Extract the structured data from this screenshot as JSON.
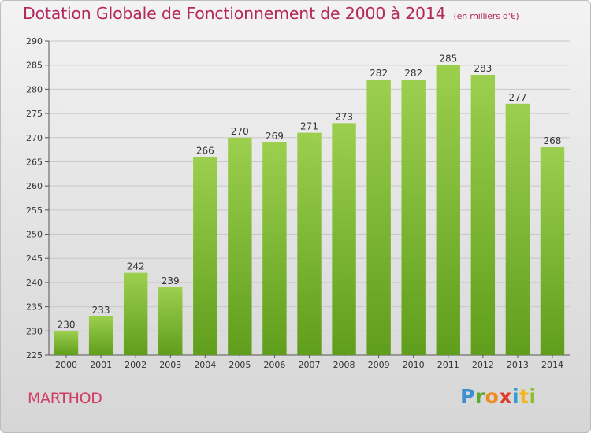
{
  "header": {
    "title": "Dotation Globale de Fonctionnement de 2000 à 2014",
    "subtitle": "(en milliers d'€)"
  },
  "commune": "MARTHOD",
  "brand": {
    "letters": [
      "P",
      "r",
      "o",
      "x",
      "i",
      "t",
      "i"
    ],
    "colors": [
      "#3a8fd1",
      "#5fa82f",
      "#f08a1c",
      "#e23b2c",
      "#2f9ad3",
      "#f2b71a",
      "#8bbd2c"
    ]
  },
  "chart_data": {
    "type": "bar",
    "title": "Dotation Globale de Fonctionnement de 2000 à 2014",
    "subtitle": "(en milliers d'€)",
    "xlabel": "",
    "ylabel": "",
    "categories": [
      "2000",
      "2001",
      "2002",
      "2003",
      "2004",
      "2005",
      "2006",
      "2007",
      "2008",
      "2009",
      "2010",
      "2011",
      "2012",
      "2013",
      "2014"
    ],
    "values": [
      230,
      233,
      242,
      239,
      266,
      270,
      269,
      271,
      273,
      282,
      282,
      285,
      283,
      277,
      268
    ],
    "ylim": [
      225,
      290
    ],
    "yticks": [
      225,
      230,
      235,
      240,
      245,
      250,
      255,
      260,
      265,
      270,
      275,
      280,
      285,
      290
    ],
    "grid": true,
    "bar_color_top": "#9ccf4e",
    "bar_color_bottom": "#5f9e1c"
  }
}
